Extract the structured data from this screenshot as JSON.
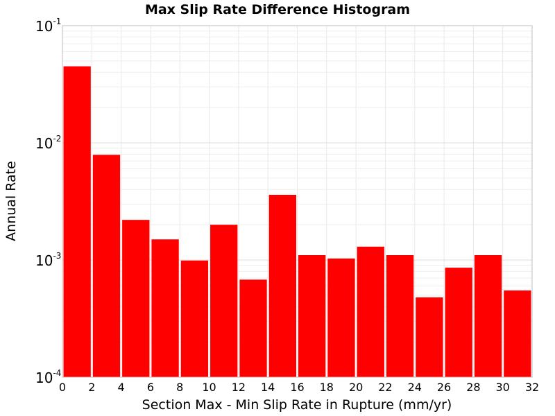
{
  "chart_data": {
    "type": "bar",
    "title": "Max Slip Rate Difference Histogram",
    "xlabel": "Section Max - Min Slip Rate in Rupture (mm/yr)",
    "ylabel": "Annual Rate",
    "x_ticks": [
      "0",
      "2",
      "4",
      "6",
      "8",
      "10",
      "12",
      "14",
      "16",
      "18",
      "20",
      "22",
      "24",
      "26",
      "28",
      "30",
      "32"
    ],
    "xlim": [
      0,
      32
    ],
    "y_scale": "log",
    "ylim": [
      0.0001,
      0.1
    ],
    "y_ticks": [
      {
        "base": "10",
        "exp": "-1",
        "value": 0.1
      },
      {
        "base": "10",
        "exp": "-2",
        "value": 0.01
      },
      {
        "base": "10",
        "exp": "-3",
        "value": 0.001
      },
      {
        "base": "10",
        "exp": "-4",
        "value": 0.0001
      }
    ],
    "grid": true,
    "bar_color": "#ff0000",
    "bins": [
      {
        "x0": 0,
        "x1": 2,
        "value": 0.045
      },
      {
        "x0": 2,
        "x1": 4,
        "value": 0.0079
      },
      {
        "x0": 4,
        "x1": 6,
        "value": 0.0022
      },
      {
        "x0": 6,
        "x1": 8,
        "value": 0.0015
      },
      {
        "x0": 8,
        "x1": 10,
        "value": 0.00099
      },
      {
        "x0": 10,
        "x1": 12,
        "value": 0.002
      },
      {
        "x0": 12,
        "x1": 14,
        "value": 0.00068
      },
      {
        "x0": 14,
        "x1": 16,
        "value": 0.0036
      },
      {
        "x0": 16,
        "x1": 18,
        "value": 0.0011
      },
      {
        "x0": 18,
        "x1": 20,
        "value": 0.00103
      },
      {
        "x0": 20,
        "x1": 22,
        "value": 0.0013
      },
      {
        "x0": 22,
        "x1": 24,
        "value": 0.0011
      },
      {
        "x0": 24,
        "x1": 26,
        "value": 0.00048
      },
      {
        "x0": 26,
        "x1": 28,
        "value": 0.00086
      },
      {
        "x0": 28,
        "x1": 30,
        "value": 0.0011
      },
      {
        "x0": 30,
        "x1": 32,
        "value": 0.00055
      }
    ]
  }
}
